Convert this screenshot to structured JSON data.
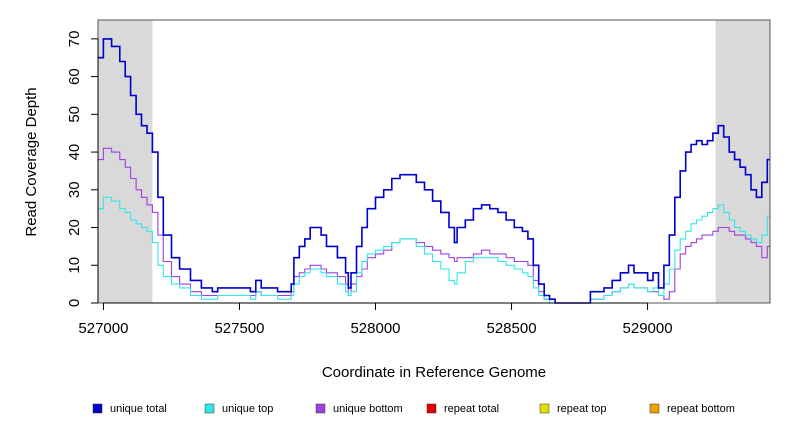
{
  "chart_data": {
    "type": "line",
    "xlabel": "Coordinate in Reference Genome",
    "ylabel": "Read Coverage Depth",
    "xlim": [
      526980,
      529450
    ],
    "ylim": [
      0,
      75
    ],
    "x_ticks": [
      527000,
      527500,
      528000,
      528500,
      529000
    ],
    "x_tick_labels": [
      "527000",
      "527500",
      "528000",
      "528500",
      "529000"
    ],
    "y_ticks": [
      0,
      10,
      20,
      30,
      40,
      50,
      60,
      70
    ],
    "y_tick_labels": [
      "0",
      "10",
      "20",
      "30",
      "40",
      "50",
      "60",
      "70"
    ],
    "shaded_regions": [
      {
        "x0": 526980,
        "x1": 527180,
        "color": "#d9d9d9"
      },
      {
        "x0": 529250,
        "x1": 529450,
        "color": "#d9d9d9"
      }
    ],
    "series": [
      {
        "name": "unique total",
        "color": "#0000cc",
        "points": [
          [
            526980,
            65
          ],
          [
            527000,
            70
          ],
          [
            527030,
            68
          ],
          [
            527060,
            64
          ],
          [
            527080,
            60
          ],
          [
            527100,
            55
          ],
          [
            527120,
            50
          ],
          [
            527140,
            47
          ],
          [
            527160,
            45
          ],
          [
            527180,
            40
          ],
          [
            527200,
            28
          ],
          [
            527220,
            18
          ],
          [
            527250,
            12
          ],
          [
            527280,
            9
          ],
          [
            527320,
            6
          ],
          [
            527360,
            4
          ],
          [
            527400,
            3
          ],
          [
            527420,
            4
          ],
          [
            527480,
            4
          ],
          [
            527520,
            4
          ],
          [
            527540,
            3
          ],
          [
            527560,
            6
          ],
          [
            527580,
            4
          ],
          [
            527620,
            4
          ],
          [
            527640,
            3
          ],
          [
            527660,
            3
          ],
          [
            527690,
            5
          ],
          [
            527700,
            12
          ],
          [
            527720,
            15
          ],
          [
            527740,
            17
          ],
          [
            527760,
            20
          ],
          [
            527800,
            18
          ],
          [
            527820,
            15
          ],
          [
            527860,
            12
          ],
          [
            527890,
            8
          ],
          [
            527900,
            4
          ],
          [
            527910,
            8
          ],
          [
            527930,
            15
          ],
          [
            527950,
            20
          ],
          [
            527970,
            25
          ],
          [
            528000,
            28
          ],
          [
            528030,
            30
          ],
          [
            528060,
            33
          ],
          [
            528090,
            34
          ],
          [
            528120,
            34
          ],
          [
            528150,
            32
          ],
          [
            528180,
            30
          ],
          [
            528210,
            27
          ],
          [
            528240,
            24
          ],
          [
            528270,
            20
          ],
          [
            528290,
            16
          ],
          [
            528300,
            20
          ],
          [
            528330,
            22
          ],
          [
            528360,
            25
          ],
          [
            528390,
            26
          ],
          [
            528420,
            25
          ],
          [
            528450,
            24
          ],
          [
            528480,
            22
          ],
          [
            528510,
            20
          ],
          [
            528540,
            19
          ],
          [
            528560,
            17
          ],
          [
            528580,
            10
          ],
          [
            528600,
            5
          ],
          [
            528620,
            2
          ],
          [
            528640,
            1
          ],
          [
            528660,
            0
          ],
          [
            528780,
            0
          ],
          [
            528790,
            3
          ],
          [
            528820,
            3
          ],
          [
            528840,
            4
          ],
          [
            528870,
            6
          ],
          [
            528900,
            8
          ],
          [
            528930,
            10
          ],
          [
            528950,
            8
          ],
          [
            528980,
            8
          ],
          [
            529000,
            6
          ],
          [
            529020,
            8
          ],
          [
            529040,
            4
          ],
          [
            529060,
            10
          ],
          [
            529080,
            18
          ],
          [
            529100,
            28
          ],
          [
            529120,
            35
          ],
          [
            529140,
            40
          ],
          [
            529160,
            42
          ],
          [
            529180,
            43
          ],
          [
            529200,
            42
          ],
          [
            529220,
            43
          ],
          [
            529240,
            45
          ],
          [
            529260,
            47
          ],
          [
            529280,
            44
          ],
          [
            529300,
            40
          ],
          [
            529320,
            38
          ],
          [
            529340,
            36
          ],
          [
            529360,
            34
          ],
          [
            529380,
            30
          ],
          [
            529400,
            28
          ],
          [
            529420,
            32
          ],
          [
            529440,
            38
          ]
        ]
      },
      {
        "name": "unique top",
        "color": "#33e6e6",
        "points": [
          [
            526980,
            25
          ],
          [
            527000,
            28
          ],
          [
            527030,
            27
          ],
          [
            527060,
            25
          ],
          [
            527080,
            24
          ],
          [
            527100,
            22
          ],
          [
            527120,
            21
          ],
          [
            527140,
            20
          ],
          [
            527160,
            19
          ],
          [
            527180,
            16
          ],
          [
            527200,
            10
          ],
          [
            527220,
            7
          ],
          [
            527250,
            5
          ],
          [
            527280,
            4
          ],
          [
            527320,
            2
          ],
          [
            527360,
            1
          ],
          [
            527400,
            1
          ],
          [
            527420,
            2
          ],
          [
            527480,
            2
          ],
          [
            527520,
            2
          ],
          [
            527540,
            1
          ],
          [
            527560,
            3
          ],
          [
            527580,
            2
          ],
          [
            527620,
            2
          ],
          [
            527640,
            1
          ],
          [
            527660,
            1
          ],
          [
            527690,
            2
          ],
          [
            527700,
            5
          ],
          [
            527720,
            7
          ],
          [
            527740,
            8
          ],
          [
            527760,
            9
          ],
          [
            527800,
            8
          ],
          [
            527820,
            7
          ],
          [
            527860,
            5
          ],
          [
            527890,
            3
          ],
          [
            527900,
            2
          ],
          [
            527910,
            3
          ],
          [
            527930,
            8
          ],
          [
            527950,
            11
          ],
          [
            527970,
            13
          ],
          [
            528000,
            14
          ],
          [
            528030,
            15
          ],
          [
            528060,
            16
          ],
          [
            528090,
            17
          ],
          [
            528120,
            17
          ],
          [
            528150,
            15
          ],
          [
            528180,
            13
          ],
          [
            528210,
            11
          ],
          [
            528240,
            9
          ],
          [
            528270,
            6
          ],
          [
            528290,
            5
          ],
          [
            528300,
            8
          ],
          [
            528330,
            11
          ],
          [
            528360,
            12
          ],
          [
            528390,
            12
          ],
          [
            528420,
            12
          ],
          [
            528450,
            11
          ],
          [
            528480,
            10
          ],
          [
            528510,
            9
          ],
          [
            528540,
            8
          ],
          [
            528560,
            7
          ],
          [
            528580,
            4
          ],
          [
            528600,
            2
          ],
          [
            528620,
            1
          ],
          [
            528640,
            0
          ],
          [
            528660,
            0
          ],
          [
            528780,
            0
          ],
          [
            528790,
            1
          ],
          [
            528820,
            1
          ],
          [
            528840,
            2
          ],
          [
            528870,
            3
          ],
          [
            528900,
            4
          ],
          [
            528930,
            5
          ],
          [
            528950,
            4
          ],
          [
            528980,
            4
          ],
          [
            529000,
            3
          ],
          [
            529020,
            4
          ],
          [
            529040,
            2
          ],
          [
            529060,
            5
          ],
          [
            529080,
            9
          ],
          [
            529100,
            14
          ],
          [
            529120,
            17
          ],
          [
            529140,
            19
          ],
          [
            529160,
            21
          ],
          [
            529180,
            22
          ],
          [
            529200,
            23
          ],
          [
            529220,
            24
          ],
          [
            529240,
            25
          ],
          [
            529260,
            26
          ],
          [
            529280,
            24
          ],
          [
            529300,
            22
          ],
          [
            529320,
            20
          ],
          [
            529340,
            19
          ],
          [
            529360,
            18
          ],
          [
            529380,
            17
          ],
          [
            529400,
            16
          ],
          [
            529420,
            18
          ],
          [
            529440,
            23
          ]
        ]
      },
      {
        "name": "unique bottom",
        "color": "#a040e0",
        "points": [
          [
            526980,
            38
          ],
          [
            527000,
            41
          ],
          [
            527030,
            40
          ],
          [
            527060,
            38
          ],
          [
            527080,
            36
          ],
          [
            527100,
            33
          ],
          [
            527120,
            30
          ],
          [
            527140,
            28
          ],
          [
            527160,
            26
          ],
          [
            527180,
            24
          ],
          [
            527200,
            18
          ],
          [
            527220,
            11
          ],
          [
            527250,
            7
          ],
          [
            527280,
            5
          ],
          [
            527320,
            3
          ],
          [
            527360,
            2
          ],
          [
            527400,
            2
          ],
          [
            527420,
            2
          ],
          [
            527480,
            2
          ],
          [
            527520,
            2
          ],
          [
            527540,
            2
          ],
          [
            527560,
            3
          ],
          [
            527580,
            2
          ],
          [
            527620,
            2
          ],
          [
            527640,
            2
          ],
          [
            527660,
            2
          ],
          [
            527690,
            3
          ],
          [
            527700,
            7
          ],
          [
            527720,
            8
          ],
          [
            527740,
            9
          ],
          [
            527760,
            10
          ],
          [
            527800,
            9
          ],
          [
            527820,
            8
          ],
          [
            527860,
            7
          ],
          [
            527890,
            5
          ],
          [
            527900,
            2
          ],
          [
            527910,
            5
          ],
          [
            527930,
            7
          ],
          [
            527950,
            9
          ],
          [
            527970,
            12
          ],
          [
            528000,
            13
          ],
          [
            528030,
            14
          ],
          [
            528060,
            16
          ],
          [
            528090,
            17
          ],
          [
            528120,
            17
          ],
          [
            528150,
            16
          ],
          [
            528180,
            15
          ],
          [
            528210,
            14
          ],
          [
            528240,
            13
          ],
          [
            528270,
            12
          ],
          [
            528290,
            11
          ],
          [
            528300,
            12
          ],
          [
            528330,
            12
          ],
          [
            528360,
            13
          ],
          [
            528390,
            14
          ],
          [
            528420,
            13
          ],
          [
            528450,
            13
          ],
          [
            528480,
            12
          ],
          [
            528510,
            11
          ],
          [
            528540,
            11
          ],
          [
            528560,
            10
          ],
          [
            528580,
            6
          ],
          [
            528600,
            3
          ],
          [
            528620,
            1
          ],
          [
            528640,
            1
          ],
          [
            528660,
            0
          ],
          [
            528780,
            0
          ],
          [
            528790,
            1
          ],
          [
            528820,
            1
          ],
          [
            528840,
            2
          ],
          [
            528870,
            3
          ],
          [
            528900,
            4
          ],
          [
            528930,
            5
          ],
          [
            528950,
            4
          ],
          [
            528980,
            4
          ],
          [
            529000,
            3
          ],
          [
            529020,
            3
          ],
          [
            529040,
            2
          ],
          [
            529060,
            1
          ],
          [
            529080,
            3
          ],
          [
            529100,
            9
          ],
          [
            529120,
            13
          ],
          [
            529140,
            15
          ],
          [
            529160,
            16
          ],
          [
            529180,
            17
          ],
          [
            529200,
            18
          ],
          [
            529220,
            18
          ],
          [
            529240,
            19
          ],
          [
            529260,
            20
          ],
          [
            529280,
            20
          ],
          [
            529300,
            19
          ],
          [
            529320,
            18
          ],
          [
            529340,
            18
          ],
          [
            529360,
            17
          ],
          [
            529380,
            16
          ],
          [
            529400,
            15
          ],
          [
            529420,
            12
          ],
          [
            529440,
            15
          ]
        ]
      },
      {
        "name": "repeat total",
        "color": "#e00000",
        "points": [
          [
            526980,
            0
          ],
          [
            529450,
            0
          ]
        ]
      },
      {
        "name": "repeat top",
        "color": "#e0e000",
        "points": [
          [
            526980,
            0
          ],
          [
            529450,
            0
          ]
        ]
      },
      {
        "name": "repeat bottom",
        "color": "#f0a000",
        "points": [
          [
            526980,
            0
          ],
          [
            529450,
            0
          ]
        ]
      }
    ],
    "legend": [
      {
        "label": "unique total",
        "color": "#0000cc"
      },
      {
        "label": "unique top",
        "color": "#33e6e6"
      },
      {
        "label": "unique bottom",
        "color": "#a040e0"
      },
      {
        "label": "repeat total",
        "color": "#e00000"
      },
      {
        "label": "repeat top",
        "color": "#e0e000"
      },
      {
        "label": "repeat bottom",
        "color": "#f0a000"
      }
    ],
    "legend_position": "bottom"
  }
}
